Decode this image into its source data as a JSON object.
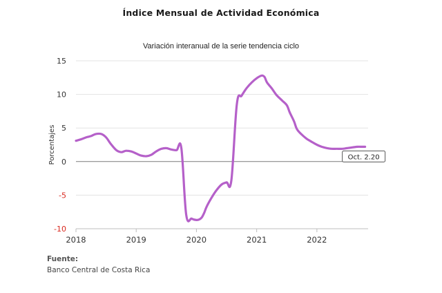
{
  "chart_data": {
    "type": "line",
    "title": "Índice Mensual de  Actividad Económica",
    "subtitle": "Variación interanual de la serie tendencia ciclo",
    "ylabel": "Porcentajes",
    "xlabel": "",
    "ylim": [
      -10,
      15
    ],
    "xlim": [
      2018,
      2022.85
    ],
    "yticks": [
      -10,
      -5,
      0,
      5,
      10,
      15
    ],
    "xticks": [
      2018,
      2019,
      2020,
      2021,
      2022
    ],
    "grid": "horizontal",
    "line_color": "#b560c9",
    "negative_tick_color": "#d9281e",
    "series": [
      {
        "x": [
          2018.0,
          2018.08,
          2018.17,
          2018.25,
          2018.33,
          2018.42,
          2018.5,
          2018.58,
          2018.67,
          2018.75,
          2018.83,
          2018.92,
          2019.0,
          2019.08,
          2019.17,
          2019.25,
          2019.33,
          2019.42,
          2019.5,
          2019.58,
          2019.67,
          2019.75,
          2019.83,
          2019.92,
          2020.0,
          2020.05,
          2020.09,
          2020.13,
          2020.17,
          2020.25,
          2020.33,
          2020.42,
          2020.5,
          2020.58,
          2020.67,
          2020.75,
          2020.83,
          2020.92,
          2021.0,
          2021.08,
          2021.13,
          2021.17,
          2021.25,
          2021.33,
          2021.42,
          2021.5,
          2021.55,
          2021.62,
          2021.67,
          2021.75,
          2021.83,
          2021.92,
          2022.0,
          2022.08,
          2022.17,
          2022.25,
          2022.33,
          2022.42,
          2022.5,
          2022.58,
          2022.67,
          2022.75,
          2022.8
        ],
        "y": [
          3.1,
          3.3,
          3.6,
          3.8,
          4.1,
          4.1,
          3.6,
          2.6,
          1.7,
          1.4,
          1.6,
          1.5,
          1.2,
          0.9,
          0.8,
          1.0,
          1.5,
          1.9,
          2.0,
          1.8,
          1.7,
          2.0,
          -7.9,
          -8.5,
          -8.7,
          -8.6,
          -8.3,
          -7.6,
          -6.7,
          -5.4,
          -4.3,
          -3.4,
          -3.1,
          -2.8,
          8.5,
          9.8,
          10.9,
          11.8,
          12.4,
          12.8,
          12.6,
          11.8,
          10.9,
          9.9,
          9.1,
          8.4,
          7.3,
          6.0,
          4.8,
          4.0,
          3.4,
          2.9,
          2.5,
          2.2,
          2.0,
          1.9,
          1.9,
          1.9,
          2.0,
          2.1,
          2.2,
          2.2,
          2.2
        ],
        "values_note": ""
      }
    ],
    "annotation": {
      "label": "Oct. 2.20",
      "x": 2022.8,
      "y": 2.2
    }
  },
  "source": {
    "heading": "Fuente:",
    "text": "Banco Central de Costa Rica"
  }
}
